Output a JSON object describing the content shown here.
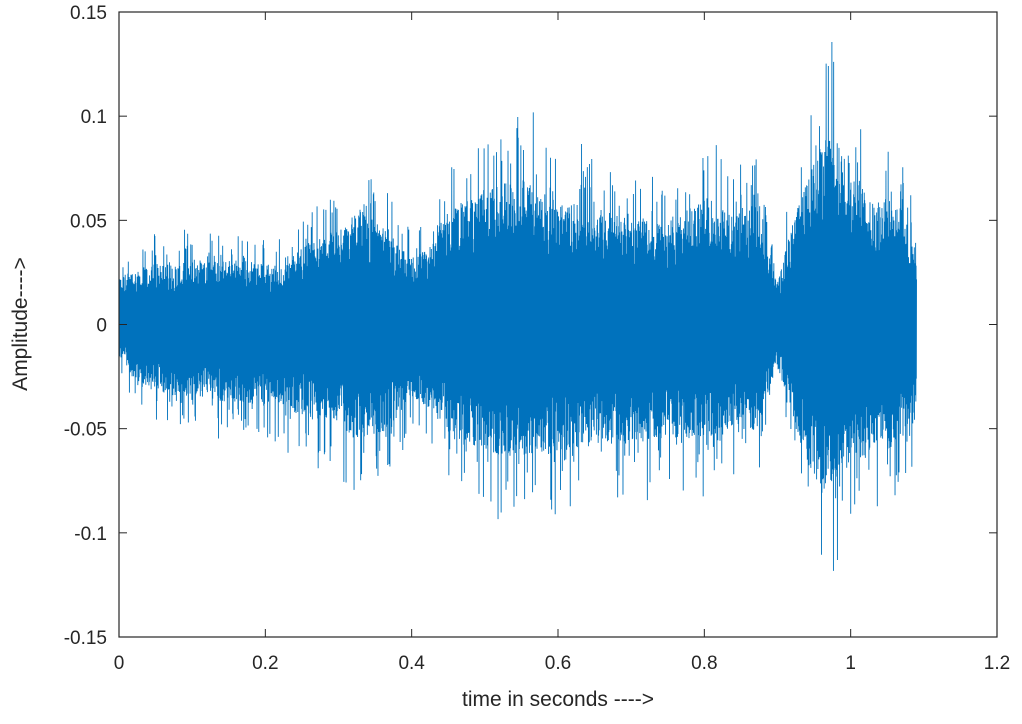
{
  "chart_data": {
    "type": "line",
    "title": "",
    "xlabel": "time in seconds ---->",
    "ylabel": "Amplitude---->",
    "xlim": [
      0,
      1.2
    ],
    "ylim": [
      -0.15,
      0.15
    ],
    "xticks": [
      0,
      0.2,
      0.4,
      0.6,
      0.8,
      1,
      1.2
    ],
    "xtick_labels": [
      "0",
      "0.2",
      "0.4",
      "0.6",
      "0.8",
      "1",
      "1.2"
    ],
    "yticks": [
      -0.15,
      -0.1,
      -0.05,
      0,
      0.05,
      0.1,
      0.15
    ],
    "ytick_labels": [
      "-0.15",
      "-0.1",
      "-0.05",
      "0",
      "0.05",
      "0.1",
      "0.15"
    ],
    "grid": false,
    "legend": "none",
    "line_color": "#0072bd",
    "series": [
      {
        "signal_duration": 1.09,
        "envelope": {
          "t": [
            0,
            0.02,
            0.05,
            0.08,
            0.12,
            0.17,
            0.22,
            0.26,
            0.3,
            0.33,
            0.36,
            0.4,
            0.42,
            0.45,
            0.5,
            0.55,
            0.6,
            0.65,
            0.7,
            0.75,
            0.8,
            0.84,
            0.87,
            0.9,
            0.92,
            0.95,
            0.97,
            1.0,
            1.03,
            1.06,
            1.09
          ],
          "upper": [
            0.036,
            0.04,
            0.045,
            0.045,
            0.048,
            0.048,
            0.042,
            0.062,
            0.07,
            0.085,
            0.072,
            0.05,
            0.055,
            0.085,
            0.1,
            0.108,
            0.092,
            0.085,
            0.08,
            0.075,
            0.095,
            0.08,
            0.09,
            0.03,
            0.075,
            0.12,
            0.145,
            0.118,
            0.09,
            0.097,
            0.058
          ],
          "lower": [
            -0.024,
            -0.04,
            -0.05,
            -0.053,
            -0.055,
            -0.06,
            -0.06,
            -0.07,
            -0.075,
            -0.085,
            -0.08,
            -0.055,
            -0.06,
            -0.08,
            -0.095,
            -0.098,
            -0.095,
            -0.09,
            -0.088,
            -0.083,
            -0.085,
            -0.075,
            -0.08,
            -0.03,
            -0.07,
            -0.115,
            -0.128,
            -0.107,
            -0.095,
            -0.092,
            -0.07
          ]
        }
      }
    ]
  }
}
